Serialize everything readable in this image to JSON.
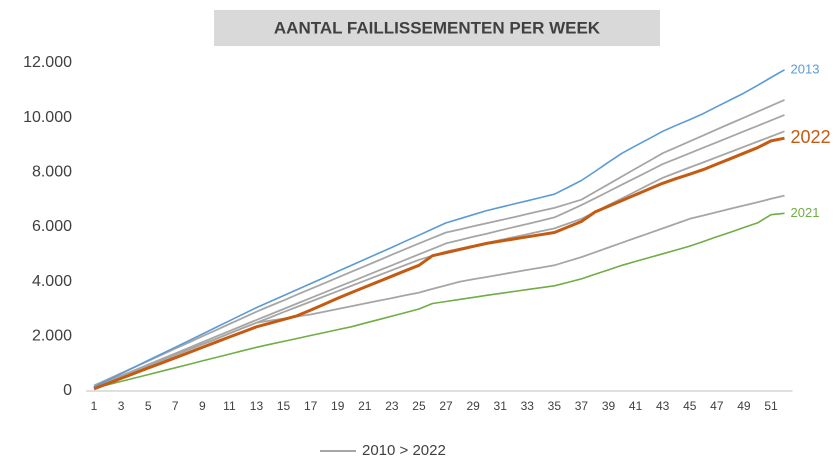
{
  "chart_data": {
    "type": "line",
    "title": "AANTAL FAILLISSEMENTEN PER WEEK",
    "legend_label": "2010 > 2022",
    "legend_color": "#a6a6a6",
    "categories": [
      1,
      null,
      3,
      null,
      5,
      null,
      7,
      null,
      9,
      null,
      11,
      null,
      13,
      null,
      15,
      null,
      17,
      null,
      19,
      null,
      21,
      null,
      23,
      null,
      25,
      null,
      27,
      null,
      29,
      null,
      31,
      null,
      33,
      null,
      35,
      null,
      37,
      null,
      39,
      null,
      41,
      null,
      43,
      null,
      45,
      null,
      47,
      null,
      49,
      null,
      51,
      null
    ],
    "ylim": [
      0,
      12000
    ],
    "yticks": [
      0,
      {
        "value": 2000,
        "label": "2.000"
      },
      {
        "value": 4000,
        "label": "4.000"
      },
      {
        "value": 6000,
        "label": "6.000"
      },
      {
        "value": 8000,
        "label": "8.000"
      },
      {
        "value": 10000,
        "label": "10.000"
      },
      {
        "value": 12000,
        "label": "12.000"
      }
    ],
    "series": [
      {
        "color": "#a6a6a6",
        "values": [
          200,
          425,
          650,
          875,
          1100,
          1325,
          1550,
          1775,
          2000,
          2225,
          2450,
          2675,
          2900,
          3110,
          3315,
          3525,
          3735,
          3940,
          4150,
          4360,
          4565,
          4775,
          4985,
          5190,
          5400,
          5600,
          5800,
          5910,
          6025,
          6140,
          6250,
          6360,
          6475,
          6590,
          6700,
          6850,
          7000,
          7285,
          7565,
          7850,
          8135,
          8415,
          8700,
          8915,
          9135,
          9350,
          9570,
          9785,
          10000,
          10220,
          10435,
          10650
        ]
      },
      {
        "color": "#a6a6a6",
        "values": [
          150,
          355,
          560,
          760,
          965,
          1170,
          1375,
          1580,
          1785,
          1990,
          2190,
          2395,
          2600,
          2800,
          3000,
          3200,
          3400,
          3600,
          3800,
          4000,
          4200,
          4400,
          4600,
          4800,
          5000,
          5200,
          5400,
          5520,
          5640,
          5755,
          5875,
          5995,
          6110,
          6230,
          6350,
          6575,
          6800,
          7050,
          7300,
          7550,
          7800,
          8050,
          8300,
          8500,
          8700,
          8900,
          9100,
          9300,
          9500,
          9700,
          9900,
          10100
        ]
      },
      {
        "color": "#a6a6a6",
        "values": [
          120,
          320,
          515,
          715,
          910,
          1110,
          1310,
          1505,
          1705,
          1900,
          2100,
          2300,
          2500,
          2690,
          2885,
          3075,
          3270,
          3460,
          3650,
          3845,
          4035,
          4225,
          4420,
          4610,
          4800,
          4950,
          5100,
          5205,
          5315,
          5420,
          5525,
          5630,
          5735,
          5845,
          5950,
          6125,
          6300,
          6550,
          6800,
          7050,
          7300,
          7550,
          7800,
          7990,
          8180,
          8365,
          8555,
          8745,
          8935,
          9125,
          9310,
          9500
        ]
      },
      {
        "color": "#a6a6a6",
        "values": [
          150,
          345,
          540,
          740,
          935,
          1130,
          1325,
          1520,
          1715,
          1910,
          2110,
          2305,
          2500,
          2575,
          2650,
          2725,
          2800,
          2900,
          3000,
          3100,
          3200,
          3300,
          3400,
          3500,
          3600,
          3735,
          3865,
          4000,
          4085,
          4170,
          4260,
          4345,
          4430,
          4515,
          4600,
          4750,
          4900,
          5075,
          5250,
          5425,
          5600,
          5775,
          5950,
          6125,
          6300,
          6420,
          6545,
          6665,
          6785,
          6905,
          7030,
          7150
        ]
      },
      {
        "name": "2013",
        "color": "#5b9bd5",
        "values": [
          150,
          390,
          630,
          875,
          1120,
          1360,
          1600,
          1840,
          2080,
          2325,
          2570,
          2810,
          3050,
          3270,
          3490,
          3710,
          3930,
          4150,
          4375,
          4595,
          4815,
          5035,
          5255,
          5480,
          5700,
          5925,
          6150,
          6300,
          6450,
          6600,
          6720,
          6840,
          6960,
          7080,
          7200,
          7450,
          7700,
          8030,
          8370,
          8700,
          8970,
          9230,
          9500,
          9720,
          9930,
          10150,
          10400,
          10650,
          10900,
          11180,
          11470,
          11750
        ]
      },
      {
        "name": "2021",
        "color": "#70ad47",
        "values": [
          100,
          225,
          350,
          475,
          600,
          725,
          850,
          975,
          1100,
          1225,
          1350,
          1475,
          1600,
          1710,
          1815,
          1920,
          2030,
          2135,
          2245,
          2350,
          2480,
          2610,
          2740,
          2870,
          3000,
          3200,
          3275,
          3350,
          3425,
          3500,
          3570,
          3640,
          3710,
          3780,
          3850,
          3975,
          4100,
          4270,
          4430,
          4600,
          4740,
          4880,
          5020,
          5160,
          5300,
          5470,
          5640,
          5810,
          5980,
          6150,
          6450,
          6500
        ]
      },
      {
        "name": "2022",
        "color": "#c55a11",
        "values": [
          80,
          270,
          460,
          650,
          840,
          1025,
          1215,
          1405,
          1595,
          1785,
          1975,
          2160,
          2350,
          2480,
          2620,
          2750,
          2960,
          3175,
          3390,
          3600,
          3800,
          4000,
          4200,
          4400,
          4600,
          4950,
          5060,
          5175,
          5290,
          5400,
          5480,
          5560,
          5640,
          5720,
          5800,
          6000,
          6200,
          6550,
          6760,
          6970,
          7180,
          7390,
          7600,
          7770,
          7930,
          8100,
          8300,
          8500,
          8700,
          8900,
          9150,
          9250
        ]
      }
    ]
  }
}
